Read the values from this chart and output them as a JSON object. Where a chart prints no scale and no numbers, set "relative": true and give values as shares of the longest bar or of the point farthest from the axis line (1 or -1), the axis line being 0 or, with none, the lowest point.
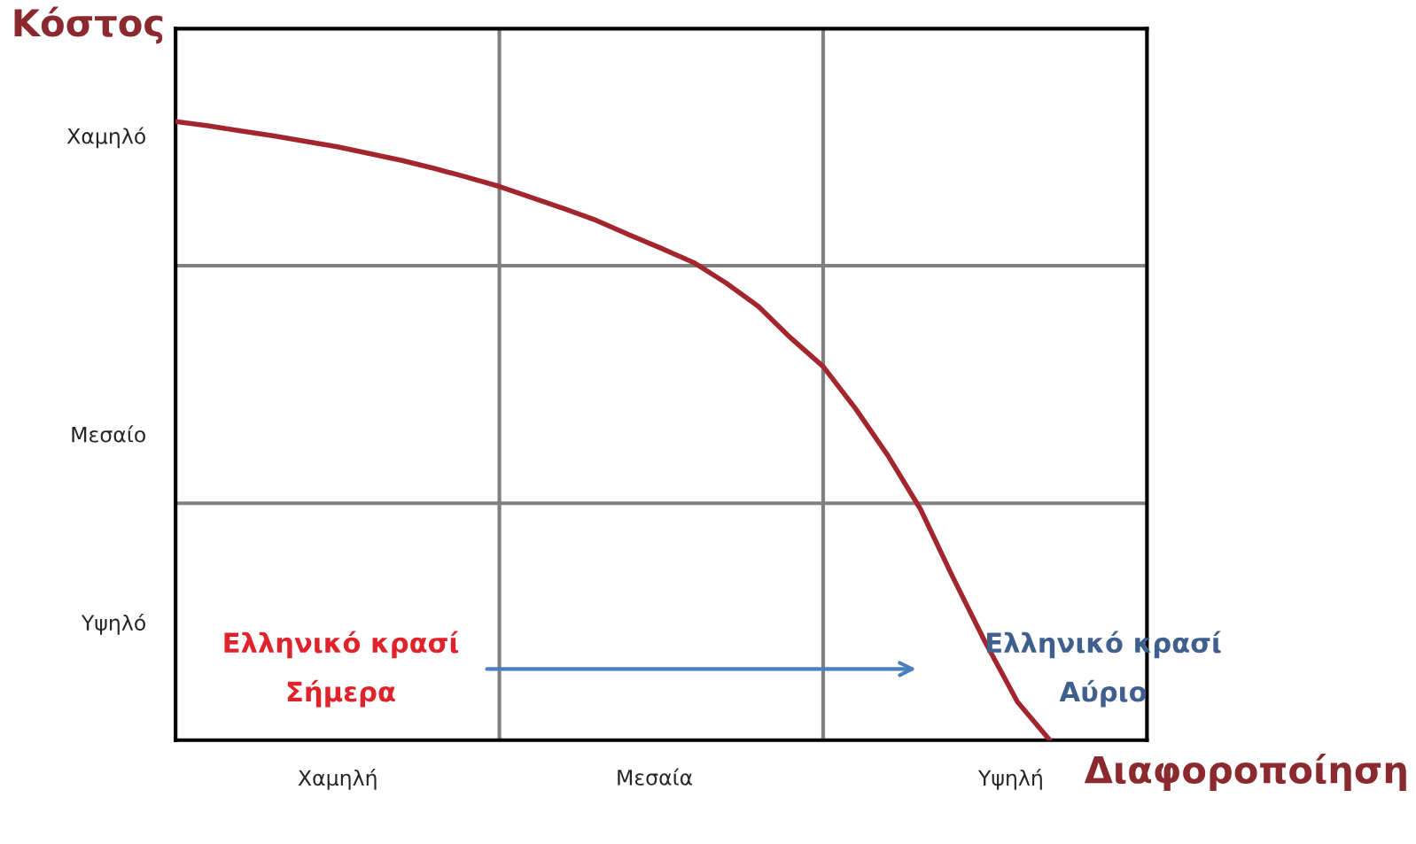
{
  "chart_data": {
    "type": "line",
    "relative": true,
    "ylabel": "Κόστος",
    "xlabel": "Διαφοροποίηση",
    "categories": [
      null,
      null,
      null,
      null,
      null,
      null,
      null,
      null,
      null,
      null,
      null,
      null,
      null,
      null,
      null,
      null,
      null,
      null,
      null,
      null,
      null,
      null,
      null,
      null,
      null,
      null,
      null,
      null,
      null,
      null,
      null
    ],
    "series": [
      {
        "color": "#a3262e",
        "values": [
          1,
          0.993,
          0.985,
          0.977,
          0.968,
          0.959,
          0.948,
          0.937,
          0.924,
          0.91,
          0.895,
          0.877,
          0.859,
          0.84,
          0.817,
          0.795,
          0.772,
          0.739,
          0.701,
          0.65,
          0.604,
          0.536,
          0.46,
          0.374,
          0.264,
          0.159,
          0.062,
          0,
          null,
          null,
          null
        ]
      }
    ],
    "ref_lines": [
      {
        "axis": "y",
        "value": 0.383,
        "color": "#808080"
      },
      {
        "axis": "y",
        "value": 0.767,
        "color": "#808080"
      }
    ],
    "annotations": [
      "Χαμηλό",
      "Μεσαίο",
      "Υψηλό",
      "Χαμηλή",
      "Μεσαία",
      "Υψηλή",
      "Ελληνικό κρασί\nΣήμερα",
      "Ελληνικό κρασί\nΑύριο"
    ],
    "grid": false,
    "legend": false,
    "marker": "none",
    "line_style": "solid"
  }
}
